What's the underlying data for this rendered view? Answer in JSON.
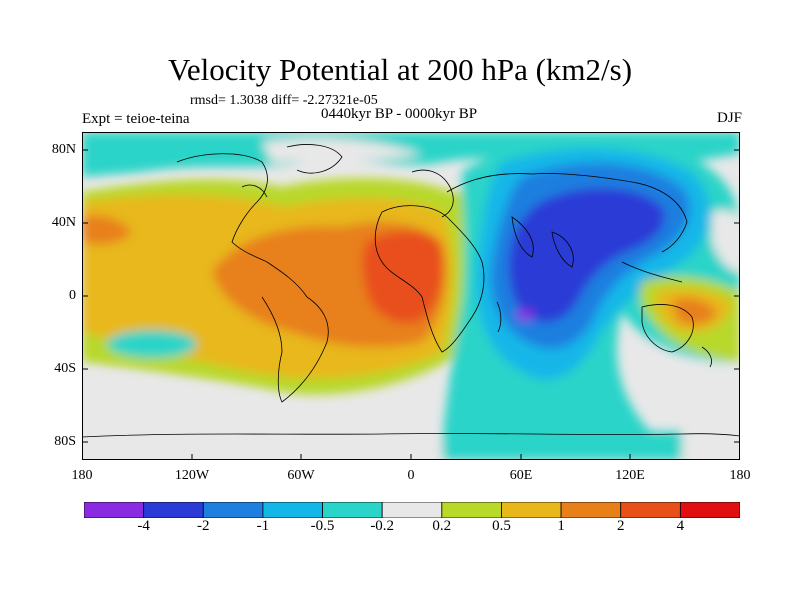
{
  "title": "Velocity Potential at 200 hPa (km2/s)",
  "stats": "rmsd= 1.3038 diff= -2.27321e-05",
  "experiment": "Expt = teioe-teina",
  "period": "0440kyr BP - 0000kyr BP",
  "season": "DJF",
  "lat_labels": [
    "80N",
    "40N",
    "0",
    "40S",
    "80S"
  ],
  "lon_labels": [
    "180",
    "120W",
    "60W",
    "0",
    "60E",
    "120E",
    "180"
  ],
  "colorbar": {
    "labels": [
      "-4",
      "-2",
      "-1",
      "-0.5",
      "-0.2",
      "0.2",
      "0.5",
      "1",
      "2",
      "4"
    ],
    "colors": [
      "#8a2be2",
      "#2a3bd6",
      "#1f7fe0",
      "#12b7e8",
      "#2ad4c8",
      "#e8e8e8",
      "#b8d82a",
      "#e8b81a",
      "#e8801a",
      "#e8501a",
      "#e01010"
    ]
  }
}
